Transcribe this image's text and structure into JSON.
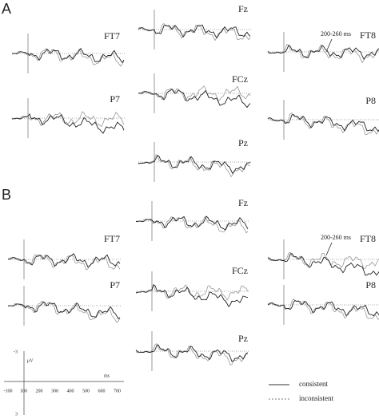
{
  "panels": [
    {
      "label": "A",
      "electrodes": [
        "FT7",
        "Fz",
        "FT8",
        "P7",
        "FCz",
        "P8",
        "Pz"
      ],
      "annotation": "200-260 ms"
    },
    {
      "label": "B",
      "electrodes": [
        "Fz",
        "FT7",
        "FT8",
        "FCz",
        "P7",
        "P8",
        "Pz"
      ],
      "annotation": "200-260 ms"
    }
  ],
  "scale": {
    "y_unit": "μV",
    "y_ticks": [
      "-3",
      "3"
    ],
    "x_unit": "ms",
    "x_ticks": [
      "-100",
      "100",
      "200",
      "300",
      "400",
      "500",
      "600",
      "700"
    ]
  },
  "legend": [
    "consistent",
    "inconsistent"
  ]
}
